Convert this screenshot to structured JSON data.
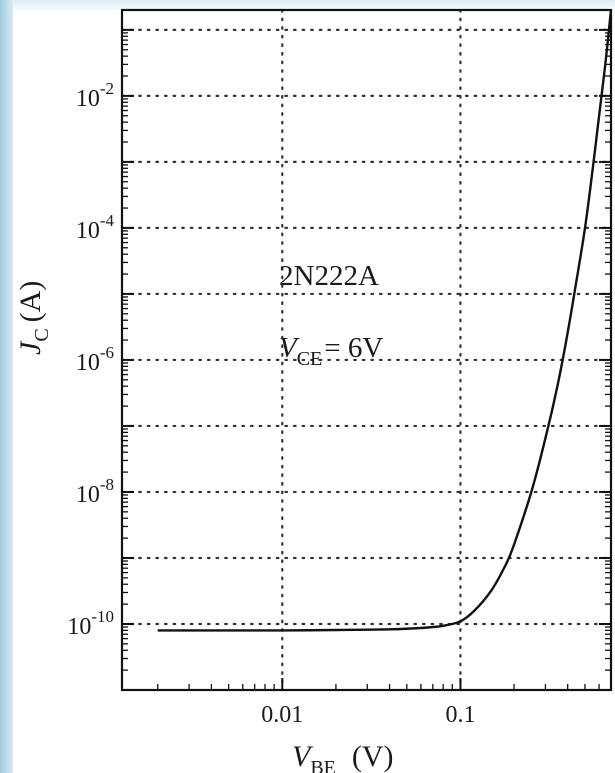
{
  "chart_data": {
    "type": "line",
    "title": "",
    "xlabel": {
      "main": "V",
      "sub": "BE",
      "unit": "(V)"
    },
    "ylabel": {
      "main": "J",
      "sub": "C",
      "unit": "(A)"
    },
    "x_scale": "log",
    "y_scale": "log",
    "xlim": [
      0.00126,
      0.7
    ],
    "ylim": [
      1e-11,
      0.2
    ],
    "x_ticks": [
      {
        "value": 0.01,
        "label": "0.01"
      },
      {
        "value": 0.1,
        "label": "0.1"
      }
    ],
    "y_ticks": [
      {
        "value": 0.01,
        "base": "10",
        "exp": "-2"
      },
      {
        "value": 0.0001,
        "base": "10",
        "exp": "-4"
      },
      {
        "value": 1e-06,
        "base": "10",
        "exp": "-6"
      },
      {
        "value": 1e-08,
        "base": "10",
        "exp": "-8"
      },
      {
        "value": 1e-10,
        "base": "10",
        "exp": "-10"
      }
    ],
    "grid": true,
    "grid_x": [
      0.01,
      0.1
    ],
    "grid_y": [
      0.1,
      0.01,
      0.001,
      0.0001,
      1e-05,
      1e-06,
      1e-07,
      1e-08,
      1e-09,
      1e-10
    ],
    "annotations": [
      {
        "text": "2N222A"
      },
      {
        "main": "V",
        "sub": "CE",
        "rest": "= 6V"
      }
    ],
    "series": [
      {
        "x": [
          0.002,
          0.005,
          0.01,
          0.02,
          0.04,
          0.06,
          0.08,
          0.1,
          0.12,
          0.15,
          0.18,
          0.2,
          0.25,
          0.3,
          0.35,
          0.4,
          0.45,
          0.5,
          0.55,
          0.6,
          0.65,
          0.7
        ],
        "y": [
          8e-11,
          8e-11,
          8e-11,
          8.1e-11,
          8.3e-11,
          8.7e-11,
          9.4e-11,
          1.1e-10,
          1.6e-10,
          3.3e-10,
          8e-10,
          1.6e-09,
          1e-08,
          6.5e-08,
          4e-07,
          2.6e-06,
          1.7e-05,
          0.0001,
          0.0007,
          0.005,
          0.03,
          0.2
        ]
      }
    ]
  },
  "colors": {
    "line": "#111111",
    "grid": "#333333",
    "frame": "#111111",
    "page_edge": "#b9dcec"
  }
}
